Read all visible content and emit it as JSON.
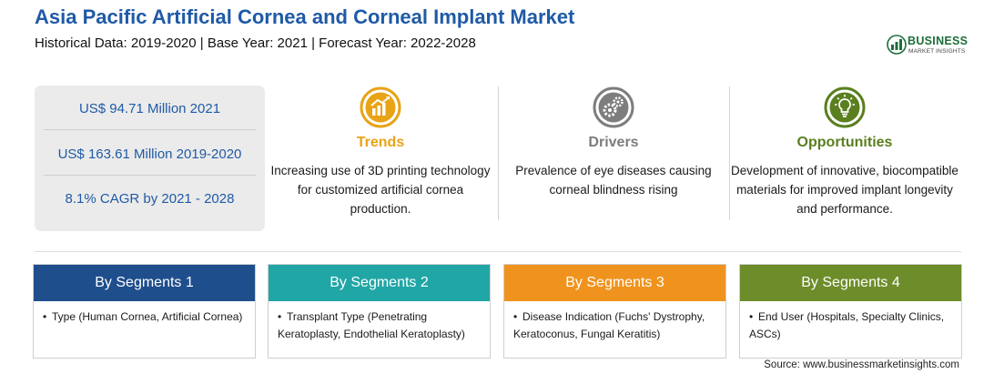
{
  "header": {
    "title": "Asia Pacific Artificial Cornea and Corneal Implant Market",
    "subtitle": "Historical Data: 2019-2020 | Base Year: 2021 | Forecast Year: 2022-2028"
  },
  "logo": {
    "name": "BUSINESS",
    "tagline": "MARKET INSIGHTS",
    "icon": "bar-chart-logo-icon",
    "color": "#1e6e3a"
  },
  "stats": [
    {
      "text": "US$ 94.71 Million 2021"
    },
    {
      "text": "US$ 163.61 Million 2019-2020"
    },
    {
      "text": "8.1% CAGR by 2021 - 2028"
    }
  ],
  "columns": [
    {
      "heading": "Trends",
      "icon": "trend-chart-icon",
      "color": "#e8a317",
      "text": "Increasing use of 3D printing technology for customized artificial cornea production."
    },
    {
      "heading": "Drivers",
      "icon": "gears-icon",
      "color": "#7d7d7d",
      "text": "Prevalence of eye diseases causing corneal blindness rising"
    },
    {
      "heading": "Opportunities",
      "icon": "lightbulb-icon",
      "color": "#5a7f1e",
      "text": "Development of innovative, biocompatible materials for improved implant longevity and performance."
    }
  ],
  "segments": [
    {
      "label": "By Segments 1",
      "color": "#1f4e8c",
      "bullet": "Type (Human Cornea, Artificial Cornea)"
    },
    {
      "label": "By Segments 2",
      "color": "#21a6a6",
      "bullet": "Transplant Type (Penetrating Keratoplasty, Endothelial Keratoplasty)"
    },
    {
      "label": "By Segments 3",
      "color": "#f0931e",
      "bullet": "Disease Indication (Fuchs' Dystrophy, Keratoconus, Fungal Keratitis)"
    },
    {
      "label": "By Segments 4",
      "color": "#6d8c2a",
      "bullet": "End User (Hospitals, Specialty Clinics, ASCs)"
    }
  ],
  "footer": {
    "source": "Source: www.businessmarketinsights.com"
  }
}
